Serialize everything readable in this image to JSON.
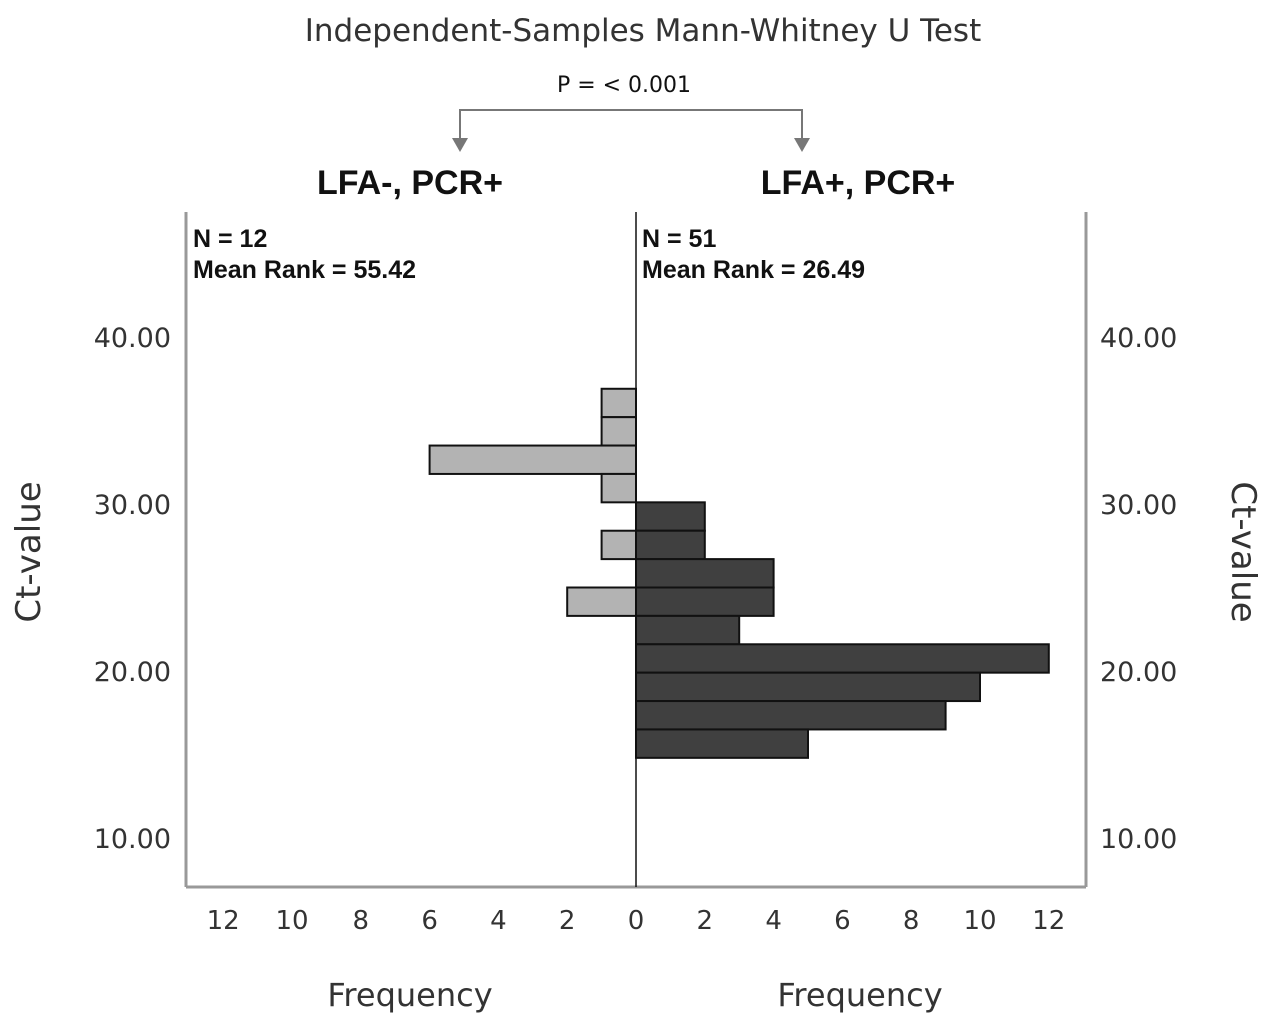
{
  "chart_data": {
    "type": "bar",
    "orientation": "horizontal-back-to-back",
    "title": "Independent-Samples Mann-Whitney U Test",
    "p_value_label": "P = < 0.001",
    "y_axis": {
      "label": "Ct-value",
      "range": [
        7,
        40
      ],
      "ticks": [
        40,
        30,
        20,
        10
      ],
      "tick_labels": [
        "40.00",
        "30.00",
        "20.00",
        "10.00"
      ]
    },
    "x_axis": {
      "label": "Frequency",
      "range": [
        0,
        13
      ],
      "ticks": [
        12,
        10,
        8,
        6,
        4,
        2,
        0
      ]
    },
    "bin_width": 1.7,
    "groups": [
      {
        "name": "LFA-, PCR+",
        "n_label": "N = 12",
        "mean_rank_label": "Mean Rank = 55.42",
        "color": "#b3b3b3",
        "side": "left",
        "bins": [
          {
            "y_low": 35.2,
            "y_high": 36.9,
            "frequency": 1
          },
          {
            "y_low": 33.5,
            "y_high": 35.2,
            "frequency": 1
          },
          {
            "y_low": 31.8,
            "y_high": 33.5,
            "frequency": 6
          },
          {
            "y_low": 30.1,
            "y_high": 31.8,
            "frequency": 1
          },
          {
            "y_low": 26.7,
            "y_high": 28.4,
            "frequency": 1
          },
          {
            "y_low": 23.3,
            "y_high": 25.0,
            "frequency": 2
          }
        ]
      },
      {
        "name": "LFA+, PCR+",
        "n_label": "N = 51",
        "mean_rank_label": "Mean Rank = 26.49",
        "color": "#404040",
        "side": "right",
        "bins": [
          {
            "y_low": 28.4,
            "y_high": 30.1,
            "frequency": 2
          },
          {
            "y_low": 26.7,
            "y_high": 28.4,
            "frequency": 2
          },
          {
            "y_low": 25.0,
            "y_high": 26.7,
            "frequency": 4
          },
          {
            "y_low": 23.3,
            "y_high": 25.0,
            "frequency": 4
          },
          {
            "y_low": 21.6,
            "y_high": 23.3,
            "frequency": 3
          },
          {
            "y_low": 19.9,
            "y_high": 21.6,
            "frequency": 12
          },
          {
            "y_low": 18.2,
            "y_high": 19.9,
            "frequency": 10
          },
          {
            "y_low": 16.5,
            "y_high": 18.2,
            "frequency": 9
          },
          {
            "y_low": 14.8,
            "y_high": 16.5,
            "frequency": 5
          }
        ]
      }
    ]
  }
}
